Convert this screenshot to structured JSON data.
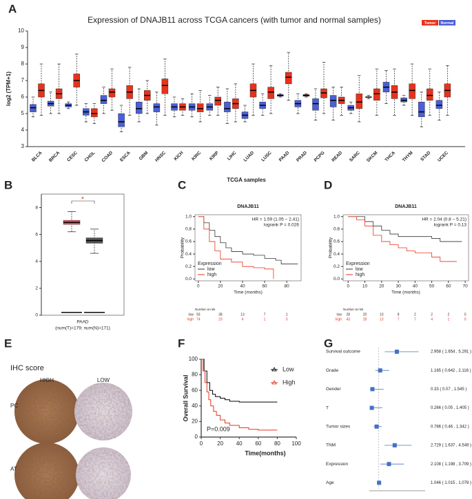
{
  "panels": [
    "A",
    "B",
    "C",
    "D",
    "E",
    "F",
    "G"
  ],
  "ihc": {
    "title": "IHC score",
    "columns": [
      "HIGH",
      "LOW"
    ],
    "rows": [
      "PC",
      "AT"
    ]
  },
  "chart_data": [
    {
      "type": "box",
      "title": "Expression of DNAJB11 across TCGA cancers (with tumor and normal samples)",
      "ylabel": "log2 (TPM+1)",
      "xlabel": "TCGA samples",
      "ylim": [
        3,
        10
      ],
      "yticks": [
        3,
        4,
        5,
        6,
        7,
        8,
        9,
        10
      ],
      "categories": [
        "BLCA",
        "BRCA",
        "CESC",
        "CHOL",
        "COAD",
        "ESCA",
        "GBM",
        "HNSC",
        "KICH",
        "KIRC",
        "KIRP",
        "LIHC",
        "LUAD",
        "LUSC",
        "PAAD",
        "PRAD",
        "PCPG",
        "READ",
        "SARC",
        "SKCM",
        "THCA",
        "THYM",
        "STAD",
        "UCEC"
      ],
      "series": [
        {
          "name": "Tumor",
          "color": "#e8321b",
          "values": [
            [
              4.9,
              6.0,
              6.4,
              6.8,
              8.0
            ],
            [
              5.0,
              5.9,
              6.2,
              6.5,
              8.0
            ],
            [
              5.5,
              6.6,
              7.0,
              7.4,
              8.6
            ],
            [
              4.4,
              4.8,
              5.0,
              5.3,
              5.6
            ],
            [
              5.2,
              6.0,
              6.3,
              6.5,
              7.7
            ],
            [
              4.9,
              5.9,
              6.3,
              6.7,
              7.8
            ],
            [
              5.0,
              5.8,
              6.1,
              6.4,
              7.0
            ],
            [
              4.9,
              6.2,
              6.7,
              7.1,
              8.3
            ],
            [
              4.9,
              5.2,
              5.4,
              5.6,
              5.9
            ],
            [
              4.5,
              5.1,
              5.3,
              5.6,
              6.4
            ],
            [
              4.9,
              5.5,
              5.8,
              6.0,
              6.6
            ],
            [
              4.5,
              5.3,
              5.6,
              5.9,
              6.8
            ],
            [
              4.9,
              6.0,
              6.4,
              6.8,
              8.0
            ],
            [
              5.0,
              5.9,
              6.3,
              6.6,
              7.9
            ],
            [
              5.8,
              6.8,
              7.2,
              7.5,
              8.7
            ],
            [
              6.0,
              6.05,
              6.1,
              6.15,
              6.2
            ],
            [
              5.0,
              5.95,
              6.25,
              6.5,
              8.1
            ],
            [
              4.9,
              5.6,
              5.8,
              6.0,
              6.6
            ],
            [
              4.5,
              5.3,
              5.7,
              6.2,
              7.3
            ],
            [
              4.9,
              5.8,
              6.2,
              6.5,
              7.7
            ],
            [
              4.9,
              5.9,
              6.3,
              6.7,
              7.7
            ],
            [
              4.9,
              5.9,
              6.4,
              6.8,
              8.0
            ],
            [
              4.9,
              5.8,
              6.1,
              6.5,
              7.7
            ],
            [
              4.9,
              6.0,
              6.4,
              6.8,
              7.9
            ]
          ]
        },
        {
          "name": "Normal",
          "color": "#4a5fd9",
          "values": [
            [
              4.8,
              5.1,
              5.35,
              5.55,
              6.0
            ],
            [
              5.0,
              5.45,
              5.6,
              5.75,
              6.3
            ],
            [
              5.3,
              5.4,
              5.5,
              5.6,
              5.7
            ],
            [
              4.5,
              4.9,
              5.1,
              5.3,
              5.6
            ],
            [
              5.0,
              5.6,
              5.8,
              6.1,
              6.6
            ],
            [
              3.9,
              4.2,
              4.5,
              5.0,
              5.5
            ],
            [
              4.5,
              5.0,
              5.3,
              5.7,
              6.5
            ],
            [
              4.3,
              5.1,
              5.4,
              5.6,
              6.3
            ],
            [
              4.8,
              5.2,
              5.4,
              5.6,
              6.0
            ],
            [
              4.8,
              5.2,
              5.4,
              5.6,
              6.2
            ],
            [
              4.9,
              5.2,
              5.4,
              5.6,
              6.1
            ],
            [
              4.4,
              5.1,
              5.3,
              5.7,
              6.5
            ],
            [
              4.5,
              4.7,
              4.9,
              5.1,
              5.5
            ],
            [
              4.9,
              5.3,
              5.5,
              5.7,
              6.2
            ],
            [
              6.0,
              6.05,
              6.1,
              6.15,
              6.2
            ],
            [
              5.0,
              5.4,
              5.6,
              5.8,
              6.2
            ],
            [
              4.6,
              5.2,
              5.6,
              5.9,
              6.5
            ],
            [
              4.6,
              5.4,
              5.8,
              6.1,
              6.6
            ],
            [
              5.0,
              5.2,
              5.35,
              5.5,
              5.7
            ],
            [
              5.9,
              6.0,
              6.0,
              6.0,
              6.1
            ],
            [
              5.6,
              6.3,
              6.6,
              6.9,
              7.6
            ],
            [
              5.5,
              5.7,
              5.8,
              5.95,
              6.1
            ],
            [
              4.2,
              4.8,
              5.1,
              5.7,
              6.3
            ],
            [
              4.6,
              5.3,
              5.5,
              5.8,
              6.3
            ]
          ]
        }
      ]
    },
    {
      "type": "box",
      "xlabel": "PAAD",
      "caption": "(num(T)=179; num(N)=171)",
      "annotation": "*",
      "ylim": [
        0,
        9
      ],
      "yticks": [
        0,
        2,
        4,
        6,
        8
      ],
      "series": [
        {
          "color": "#e8505b",
          "values": [
            [
              6.2,
              6.75,
              6.9,
              7.05,
              7.7
            ]
          ]
        },
        {
          "color": "#555555",
          "values": [
            [
              4.6,
              5.35,
              5.55,
              5.75,
              6.4
            ]
          ]
        }
      ]
    },
    {
      "type": "km",
      "title": "DNAJB11",
      "annotations": [
        "HR = 1.59 (1.05 − 2.41)",
        "logrank P = 0.026"
      ],
      "xlabel": "Time (months)",
      "ylabel": "Probability",
      "legend_title": "Expression",
      "legend": "bottom-left",
      "risk_title": "Number at risk",
      "xlim": [
        -3,
        93
      ],
      "ylim": [
        -0.03,
        1.03
      ],
      "xticks": [
        0,
        20,
        40,
        60,
        80
      ],
      "yticks": [
        {
          "value": 0,
          "label": "0.0"
        },
        {
          "value": 0.2,
          "label": "0.2"
        },
        {
          "value": 0.4,
          "label": "0.4"
        },
        {
          "value": 0.6,
          "label": "0.6"
        },
        {
          "value": 0.8,
          "label": "0.8"
        },
        {
          "value": 1,
          "label": "1.0"
        }
      ],
      "series": [
        {
          "name": "low",
          "color": "#333333",
          "x": [
            0,
            5,
            10,
            15,
            20,
            25,
            30,
            40,
            50,
            60,
            70,
            75,
            90
          ],
          "values": [
            1,
            0.9,
            0.78,
            0.68,
            0.58,
            0.5,
            0.44,
            0.4,
            0.38,
            0.33,
            0.3,
            0.24,
            0.24
          ],
          "at_risk": [
            93,
            38,
            13,
            7,
            1
          ]
        },
        {
          "name": "high",
          "color": "#e8321b",
          "x": [
            0,
            5,
            10,
            15,
            20,
            30,
            40,
            50,
            60,
            68,
            68
          ],
          "values": [
            1,
            0.8,
            0.6,
            0.45,
            0.32,
            0.27,
            0.2,
            0.18,
            0.16,
            0.16,
            0
          ],
          "at_risk": [
            74,
            23,
            4,
            1,
            0
          ]
        }
      ]
    },
    {
      "type": "km",
      "title": "DNAJB11",
      "annotations": [
        "HR = 2.04 (0.8 − 5.21)",
        "logrank P = 0.13"
      ],
      "xlabel": "Time (months)",
      "ylabel": "Probability",
      "legend_title": "Expression",
      "legend": "bottom-left",
      "risk_title": "Number at risk",
      "xlim": [
        -3,
        72
      ],
      "ylim": [
        -0.03,
        1.03
      ],
      "xticks": [
        0,
        10,
        20,
        30,
        40,
        50,
        60,
        70
      ],
      "yticks": [
        {
          "value": 0,
          "label": "0.0"
        },
        {
          "value": 0.2,
          "label": "0.2"
        },
        {
          "value": 0.4,
          "label": "0.4"
        },
        {
          "value": 0.6,
          "label": "0.6"
        },
        {
          "value": 0.8,
          "label": "0.8"
        },
        {
          "value": 1,
          "label": "1.0"
        }
      ],
      "series": [
        {
          "name": "low",
          "color": "#333333",
          "x": [
            0,
            5,
            10,
            15,
            20,
            25,
            30,
            40,
            50,
            55,
            68
          ],
          "values": [
            1,
            1,
            0.92,
            0.85,
            0.78,
            0.72,
            0.68,
            0.68,
            0.65,
            0.6,
            0.6
          ],
          "at_risk": [
            28,
            20,
            10,
            8,
            2,
            2,
            2,
            0
          ]
        },
        {
          "name": "high",
          "color": "#e8321b",
          "x": [
            0,
            5,
            10,
            15,
            20,
            25,
            30,
            35,
            40,
            50,
            55,
            65
          ],
          "values": [
            1,
            0.95,
            0.85,
            0.7,
            0.6,
            0.55,
            0.5,
            0.45,
            0.42,
            0.35,
            0.28,
            0.28
          ],
          "at_risk": [
            43,
            28,
            13,
            7,
            7,
            4,
            1,
            0
          ]
        }
      ]
    },
    {
      "type": "km",
      "ylabel": "Overall Survival",
      "xlabel": "Time(months)",
      "annotations": [
        "P=0.009"
      ],
      "legend": "top-right",
      "xlim": [
        0,
        100
      ],
      "ylim": [
        0,
        100
      ],
      "xticks": [
        0,
        20,
        40,
        60,
        80,
        100
      ],
      "yticks": [
        0,
        20,
        40,
        60,
        80,
        100
      ],
      "series": [
        {
          "name": "Low",
          "color": "#000000",
          "x": [
            0,
            3,
            6,
            9,
            12,
            15,
            20,
            25,
            30,
            40,
            50,
            60,
            70,
            80
          ],
          "values": [
            100,
            85,
            70,
            60,
            55,
            52,
            50,
            48,
            46,
            45,
            45,
            45,
            45,
            45
          ]
        },
        {
          "name": "High",
          "color": "#e8321b",
          "x": [
            0,
            2,
            4,
            6,
            8,
            10,
            13,
            16,
            20,
            25,
            30,
            40,
            50,
            60,
            70,
            80
          ],
          "values": [
            100,
            85,
            70,
            58,
            48,
            40,
            33,
            28,
            22,
            18,
            15,
            12,
            10,
            9,
            9,
            9
          ]
        }
      ]
    },
    {
      "type": "forest",
      "color": "#4472c4",
      "xlim": [
        0,
        6
      ],
      "reference": 1,
      "categories": [
        "Survival outcome",
        "Grade",
        "Gender",
        "T",
        "Tumor sizes",
        "TNM",
        "Expression",
        "Age"
      ],
      "values": [
        2.958,
        1.165,
        0.33,
        0.266,
        0.786,
        2.729,
        2.108,
        1.046
      ],
      "lower": [
        1.654,
        0.642,
        0.07,
        0.05,
        0.46,
        1.637,
        1.198,
        1.015
      ],
      "upper": [
        5.291,
        2.116,
        1.545,
        1.405,
        1.342,
        4.549,
        3.709,
        1.078
      ],
      "value_labels": [
        "2.958 ( 1.654 , 5.291 )",
        "1.165 ( 0.642 , 2.116 )",
        "0.33 ( 0.07 , 1.545 )",
        "0.266 ( 0.05 , 1.405 )",
        "0.786 ( 0.46 , 1.342 )",
        "2.729 ( 1.637 , 4.549 )",
        "2.108 ( 1.198 , 3.709 )",
        "1.046 ( 1.015 , 1.078 )"
      ]
    }
  ]
}
